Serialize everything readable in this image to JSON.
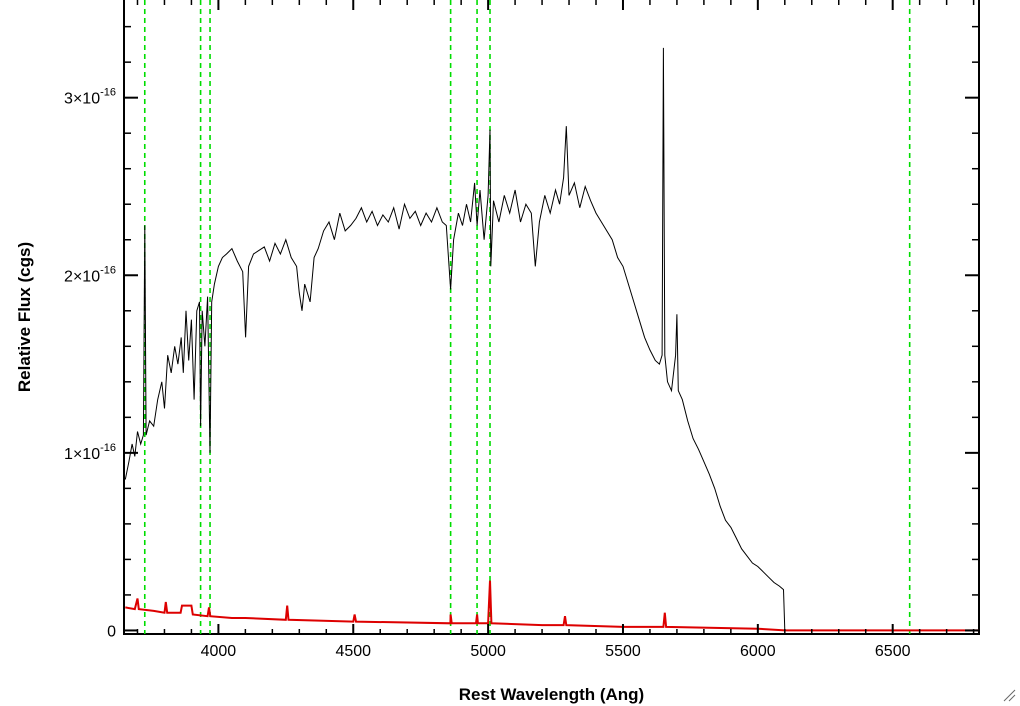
{
  "chart_data": {
    "type": "line",
    "title": "",
    "xlabel": "Rest Wavelength (Ang)",
    "ylabel": "Relative Flux (cgs)",
    "xlim": [
      3650,
      6820
    ],
    "ylim": [
      -2e-18,
      3.55e-16
    ],
    "grid": false,
    "legend": "none",
    "x_ticks": [
      {
        "value": 4000,
        "label": "4000"
      },
      {
        "value": 4500,
        "label": "4500"
      },
      {
        "value": 5000,
        "label": "5000"
      },
      {
        "value": 5500,
        "label": "5500"
      },
      {
        "value": 6000,
        "label": "6000"
      },
      {
        "value": 6500,
        "label": "6500"
      }
    ],
    "y_ticks": [
      {
        "value": 0,
        "mantissa": "0",
        "exponent": ""
      },
      {
        "value": 1e-16,
        "mantissa": "1×10",
        "exponent": "-16"
      },
      {
        "value": 2e-16,
        "mantissa": "2×10",
        "exponent": "-16"
      },
      {
        "value": 3e-16,
        "mantissa": "3×10",
        "exponent": "-16"
      }
    ],
    "vertical_lines": {
      "color": "#00dd00",
      "style": "dashed",
      "x": [
        3727,
        3934,
        3969,
        4861,
        4959,
        5007,
        6563
      ]
    },
    "series": [
      {
        "color": "#000000",
        "points": [
          [
            3655,
            0.85
          ],
          [
            3668,
            0.95
          ],
          [
            3680,
            1.05
          ],
          [
            3690,
            0.98
          ],
          [
            3700,
            1.12
          ],
          [
            3712,
            1.05
          ],
          [
            3722,
            1.1
          ],
          [
            3727,
            2.28
          ],
          [
            3732,
            1.1
          ],
          [
            3745,
            1.18
          ],
          [
            3760,
            1.15
          ],
          [
            3775,
            1.3
          ],
          [
            3790,
            1.4
          ],
          [
            3800,
            1.25
          ],
          [
            3812,
            1.55
          ],
          [
            3825,
            1.45
          ],
          [
            3838,
            1.6
          ],
          [
            3850,
            1.5
          ],
          [
            3862,
            1.65
          ],
          [
            3870,
            1.45
          ],
          [
            3880,
            1.8
          ],
          [
            3890,
            1.52
          ],
          [
            3900,
            1.75
          ],
          [
            3910,
            1.3
          ],
          [
            3920,
            1.8
          ],
          [
            3930,
            1.85
          ],
          [
            3934,
            1.15
          ],
          [
            3940,
            1.8
          ],
          [
            3950,
            1.6
          ],
          [
            3960,
            1.88
          ],
          [
            3969,
            1.0
          ],
          [
            3975,
            1.85
          ],
          [
            3985,
            1.95
          ],
          [
            4000,
            2.05
          ],
          [
            4015,
            2.1
          ],
          [
            4030,
            2.12
          ],
          [
            4050,
            2.15
          ],
          [
            4070,
            2.08
          ],
          [
            4090,
            2.02
          ],
          [
            4101,
            1.65
          ],
          [
            4112,
            2.05
          ],
          [
            4130,
            2.12
          ],
          [
            4150,
            2.14
          ],
          [
            4170,
            2.16
          ],
          [
            4190,
            2.08
          ],
          [
            4210,
            2.18
          ],
          [
            4230,
            2.12
          ],
          [
            4250,
            2.2
          ],
          [
            4270,
            2.1
          ],
          [
            4290,
            2.05
          ],
          [
            4300,
            1.9
          ],
          [
            4310,
            1.8
          ],
          [
            4320,
            1.95
          ],
          [
            4340,
            1.85
          ],
          [
            4355,
            2.1
          ],
          [
            4370,
            2.15
          ],
          [
            4390,
            2.25
          ],
          [
            4410,
            2.3
          ],
          [
            4430,
            2.2
          ],
          [
            4450,
            2.35
          ],
          [
            4470,
            2.25
          ],
          [
            4490,
            2.28
          ],
          [
            4510,
            2.32
          ],
          [
            4530,
            2.38
          ],
          [
            4550,
            2.3
          ],
          [
            4570,
            2.36
          ],
          [
            4590,
            2.28
          ],
          [
            4610,
            2.34
          ],
          [
            4630,
            2.3
          ],
          [
            4650,
            2.38
          ],
          [
            4670,
            2.26
          ],
          [
            4690,
            2.4
          ],
          [
            4710,
            2.32
          ],
          [
            4730,
            2.36
          ],
          [
            4750,
            2.28
          ],
          [
            4770,
            2.35
          ],
          [
            4790,
            2.3
          ],
          [
            4810,
            2.38
          ],
          [
            4830,
            2.3
          ],
          [
            4845,
            2.28
          ],
          [
            4861,
            1.92
          ],
          [
            4872,
            2.2
          ],
          [
            4890,
            2.35
          ],
          [
            4905,
            2.28
          ],
          [
            4920,
            2.4
          ],
          [
            4935,
            2.3
          ],
          [
            4950,
            2.52
          ],
          [
            4959,
            2.28
          ],
          [
            4970,
            2.48
          ],
          [
            4985,
            2.2
          ],
          [
            5000,
            2.45
          ],
          [
            5007,
            2.82
          ],
          [
            5010,
            2.05
          ],
          [
            5020,
            2.42
          ],
          [
            5040,
            2.3
          ],
          [
            5060,
            2.45
          ],
          [
            5080,
            2.35
          ],
          [
            5100,
            2.48
          ],
          [
            5120,
            2.3
          ],
          [
            5140,
            2.4
          ],
          [
            5160,
            2.35
          ],
          [
            5175,
            2.05
          ],
          [
            5190,
            2.3
          ],
          [
            5210,
            2.45
          ],
          [
            5230,
            2.35
          ],
          [
            5250,
            2.48
          ],
          [
            5265,
            2.4
          ],
          [
            5280,
            2.55
          ],
          [
            5290,
            2.84
          ],
          [
            5300,
            2.45
          ],
          [
            5320,
            2.52
          ],
          [
            5340,
            2.38
          ],
          [
            5360,
            2.5
          ],
          [
            5380,
            2.42
          ],
          [
            5400,
            2.35
          ],
          [
            5420,
            2.3
          ],
          [
            5440,
            2.25
          ],
          [
            5460,
            2.2
          ],
          [
            5480,
            2.1
          ],
          [
            5500,
            2.05
          ],
          [
            5520,
            1.95
          ],
          [
            5540,
            1.85
          ],
          [
            5560,
            1.75
          ],
          [
            5580,
            1.65
          ],
          [
            5600,
            1.58
          ],
          [
            5620,
            1.52
          ],
          [
            5635,
            1.5
          ],
          [
            5645,
            1.55
          ],
          [
            5650,
            3.28
          ],
          [
            5655,
            1.55
          ],
          [
            5665,
            1.4
          ],
          [
            5680,
            1.35
          ],
          [
            5695,
            1.55
          ],
          [
            5700,
            1.78
          ],
          [
            5705,
            1.35
          ],
          [
            5720,
            1.3
          ],
          [
            5740,
            1.18
          ],
          [
            5760,
            1.08
          ],
          [
            5780,
            1.02
          ],
          [
            5800,
            0.95
          ],
          [
            5820,
            0.88
          ],
          [
            5840,
            0.8
          ],
          [
            5860,
            0.7
          ],
          [
            5880,
            0.62
          ],
          [
            5900,
            0.58
          ],
          [
            5920,
            0.52
          ],
          [
            5940,
            0.46
          ],
          [
            5960,
            0.42
          ],
          [
            5980,
            0.38
          ],
          [
            6000,
            0.36
          ],
          [
            6020,
            0.33
          ],
          [
            6040,
            0.3
          ],
          [
            6060,
            0.27
          ],
          [
            6080,
            0.25
          ],
          [
            6095,
            0.23
          ],
          [
            6100,
            0.0
          ],
          [
            6820,
            0.0
          ]
        ]
      },
      {
        "color": "#dd0000",
        "points": [
          [
            3655,
            0.13
          ],
          [
            3690,
            0.12
          ],
          [
            3700,
            0.18
          ],
          [
            3705,
            0.12
          ],
          [
            3760,
            0.11
          ],
          [
            3800,
            0.1
          ],
          [
            3805,
            0.16
          ],
          [
            3810,
            0.1
          ],
          [
            3860,
            0.1
          ],
          [
            3865,
            0.14
          ],
          [
            3900,
            0.14
          ],
          [
            3905,
            0.09
          ],
          [
            3960,
            0.08
          ],
          [
            3965,
            0.13
          ],
          [
            3970,
            0.08
          ],
          [
            4050,
            0.07
          ],
          [
            4100,
            0.07
          ],
          [
            4250,
            0.06
          ],
          [
            4255,
            0.14
          ],
          [
            4260,
            0.06
          ],
          [
            4500,
            0.05
          ],
          [
            4505,
            0.09
          ],
          [
            4510,
            0.05
          ],
          [
            4860,
            0.04
          ],
          [
            4861,
            0.09
          ],
          [
            4865,
            0.04
          ],
          [
            4955,
            0.04
          ],
          [
            4959,
            0.09
          ],
          [
            4962,
            0.04
          ],
          [
            5000,
            0.04
          ],
          [
            5007,
            0.28
          ],
          [
            5012,
            0.04
          ],
          [
            5200,
            0.03
          ],
          [
            5280,
            0.03
          ],
          [
            5285,
            0.08
          ],
          [
            5290,
            0.03
          ],
          [
            5500,
            0.02
          ],
          [
            5650,
            0.02
          ],
          [
            5655,
            0.1
          ],
          [
            5660,
            0.02
          ],
          [
            6000,
            0.01
          ],
          [
            6100,
            0.0
          ],
          [
            6820,
            0.0
          ]
        ]
      }
    ]
  }
}
